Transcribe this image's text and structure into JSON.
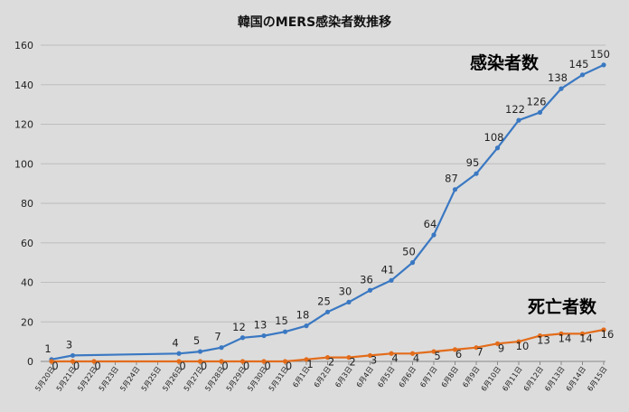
{
  "chart_data": {
    "type": "line",
    "title": "韓国のMERS感染者数推移",
    "xlabel": "",
    "ylabel": "",
    "ylim": [
      0,
      160
    ],
    "yticks": [
      0,
      20,
      40,
      60,
      80,
      100,
      120,
      140,
      160
    ],
    "grid": true,
    "legend": "labels next to lines",
    "categories": [
      "5月20日",
      "5月21日",
      "5月22日",
      "5月23日",
      "5月24日",
      "5月25日",
      "5月26日",
      "5月27日",
      "5月28日",
      "5月29日",
      "5月30日",
      "5月31日",
      "6月1日",
      "6月2日",
      "6月3日",
      "6月4日",
      "6月5日",
      "6月6日",
      "6月7日",
      "6月8日",
      "6月9日",
      "6月10日",
      "6月11日",
      "6月12日",
      "6月13日",
      "6月14日",
      "6月15日"
    ],
    "series": [
      {
        "name": "感染者数",
        "color": "#3a78c2",
        "values": [
          1,
          3,
          null,
          null,
          null,
          null,
          4,
          5,
          7,
          12,
          13,
          15,
          18,
          25,
          30,
          36,
          41,
          50,
          64,
          87,
          95,
          108,
          122,
          126,
          138,
          145,
          150
        ]
      },
      {
        "name": "死亡者数",
        "color": "#e36c1b",
        "values": [
          0,
          0,
          0,
          null,
          null,
          null,
          0,
          0,
          0,
          0,
          0,
          0,
          1,
          2,
          2,
          3,
          4,
          4,
          5,
          6,
          7,
          9,
          10,
          13,
          14,
          14,
          16
        ]
      }
    ]
  }
}
